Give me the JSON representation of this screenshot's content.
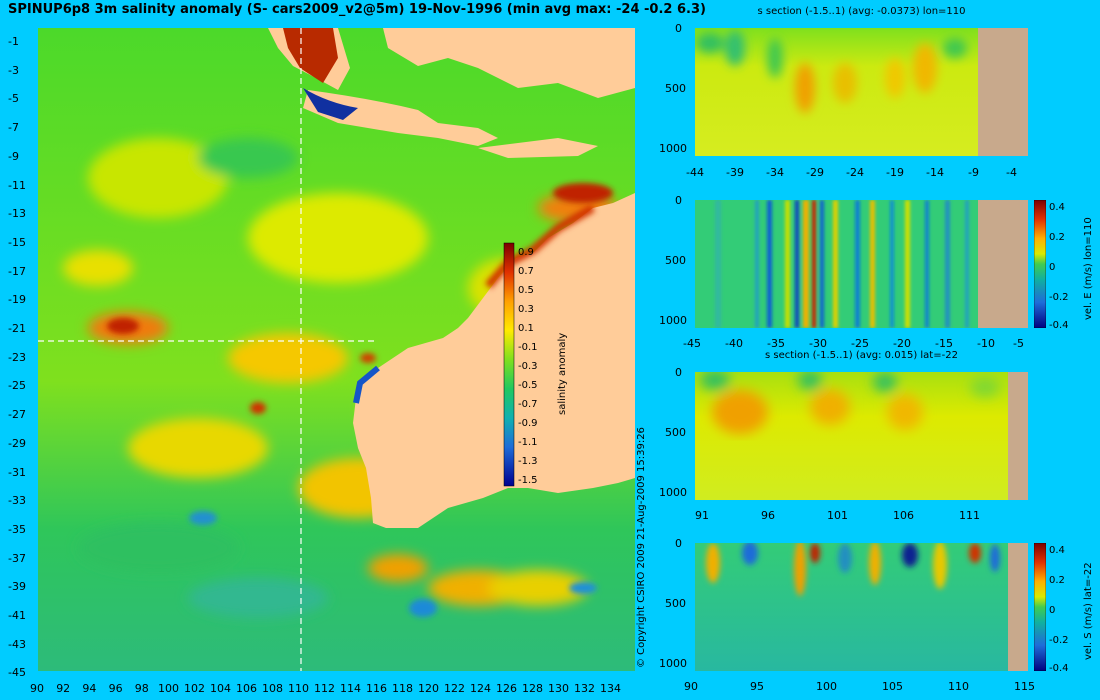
{
  "main_title": "SPINUP6p8 3m salinity anomaly (S- cars2009_v2@5m) 19-Nov-1996 (min avg max: -24 -0.2 6.3)",
  "copyright": "© Copyright CSIRO 2009   21-Aug-2009 15:39:26",
  "map": {
    "lat_ticks": [
      "-1",
      "-3",
      "-5",
      "-7",
      "-9",
      "-11",
      "-13",
      "-15",
      "-17",
      "-19",
      "-21",
      "-23",
      "-25",
      "-27",
      "-29",
      "-31",
      "-33",
      "-35",
      "-37",
      "-39",
      "-41",
      "-43",
      "-45"
    ],
    "lon_ticks": [
      "90",
      "92",
      "94",
      "96",
      "98",
      "100",
      "102",
      "104",
      "106",
      "108",
      "110",
      "112",
      "114",
      "116",
      "118",
      "120",
      "122",
      "124",
      "126",
      "128",
      "130",
      "132",
      "134"
    ],
    "colorbar": {
      "label": "salinity anomaly",
      "ticks": [
        "0.9",
        "0.7",
        "0.5",
        "0.3",
        "0.1",
        "-0.1",
        "-0.3",
        "-0.5",
        "-0.7",
        "-0.9",
        "-1.1",
        "-1.3",
        "-1.5"
      ]
    }
  },
  "panels": [
    {
      "title": "s section (-1.5..1) (avg: -0.0373) lon=110",
      "x_ticks": [
        "-44",
        "-39",
        "-34",
        "-29",
        "-24",
        "-19",
        "-14",
        "-9",
        "-4"
      ],
      "y_ticks": [
        "0",
        "500",
        "1000"
      ]
    },
    {
      "title": "",
      "x_ticks": [
        "-45",
        "-40",
        "-35",
        "-30",
        "-25",
        "-20",
        "-15",
        "-10",
        "-5"
      ],
      "y_ticks": [
        "0",
        "500",
        "1000"
      ],
      "cb_label": "vel. E (m/s) lon=110",
      "cb_ticks": [
        "0.4",
        "0.2",
        "0",
        "-0.2",
        "-0.4"
      ]
    },
    {
      "title": "s section (-1.5..1) (avg: 0.015) lat=-22",
      "x_ticks": [
        "91",
        "96",
        "101",
        "106",
        "111"
      ],
      "y_ticks": [
        "0",
        "500",
        "1000"
      ]
    },
    {
      "title": "",
      "x_ticks": [
        "90",
        "95",
        "100",
        "105",
        "110",
        "115"
      ],
      "y_ticks": [
        "0",
        "500",
        "1000"
      ],
      "cb_label": "vel. S (m/s) lat=-22",
      "cb_ticks": [
        "0.4",
        "0.2",
        "0",
        "-0.2",
        "-0.4"
      ]
    }
  ],
  "colors": {
    "background": "#00ccff",
    "ocean_base": "#3fd12f",
    "land": "#ffcc99",
    "section_land": "#c8a98c"
  }
}
